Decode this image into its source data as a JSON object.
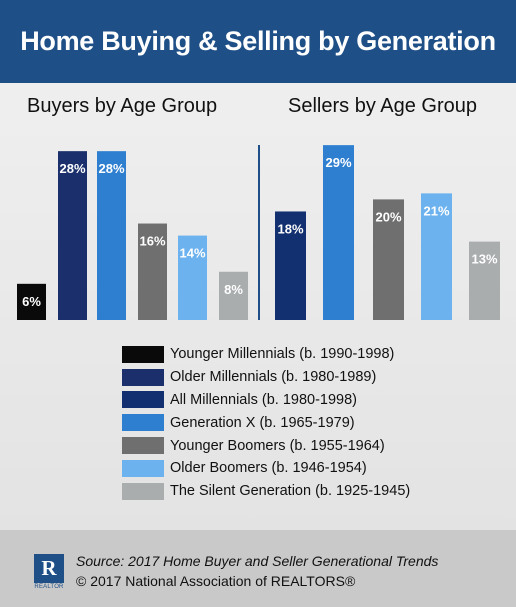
{
  "title": "Home Buying & Selling by Generation",
  "legend": [
    {
      "label": "Younger Millennials (b. 1990-1998)",
      "color": "#0a0a0a"
    },
    {
      "label": "Older Millennials (b. 1980-1989)",
      "color": "#1a2f6b"
    },
    {
      "label": "All Millennials (b. 1980-1998)",
      "color": "#12306f"
    },
    {
      "label": "Generation X (b. 1965-1979)",
      "color": "#2f7fd0"
    },
    {
      "label": "Younger Boomers (b. 1955-1964)",
      "color": "#6f6f6f"
    },
    {
      "label": "Older Boomers (b. 1946-1954)",
      "color": "#6cb2ee"
    },
    {
      "label": "The Silent Generation (b. 1925-1945)",
      "color": "#a9adae"
    }
  ],
  "chart_data": [
    {
      "type": "bar",
      "title": "Buyers by Age Group",
      "categories": [
        "Younger Millennials",
        "Older Millennials",
        "Generation X",
        "Younger Boomers",
        "Older Boomers",
        "The Silent Generation"
      ],
      "values": [
        6,
        28,
        28,
        16,
        14,
        8
      ],
      "labels": [
        "6%",
        "28%",
        "28%",
        "16%",
        "14%",
        "8%"
      ],
      "colors": [
        "#0a0a0a",
        "#1a2f6b",
        "#2f7fd0",
        "#6f6f6f",
        "#6cb2ee",
        "#a9adae"
      ],
      "ylim": [
        0,
        30
      ]
    },
    {
      "type": "bar",
      "title": "Sellers by Age Group",
      "categories": [
        "All Millennials",
        "Generation X",
        "Younger Boomers",
        "Older Boomers",
        "The Silent Generation"
      ],
      "values": [
        18,
        29,
        20,
        21,
        13
      ],
      "labels": [
        "18%",
        "29%",
        "20%",
        "21%",
        "13%"
      ],
      "colors": [
        "#12306f",
        "#2f7fd0",
        "#6f6f6f",
        "#6cb2ee",
        "#a9adae"
      ],
      "ylim": [
        0,
        30
      ]
    }
  ],
  "footer": {
    "logo_letter": "R",
    "logo_word": "REALTOR",
    "source": "Source: 2017 Home Buyer and Seller Generational Trends",
    "copyright": "© 2017 National Association of REALTORS®"
  }
}
